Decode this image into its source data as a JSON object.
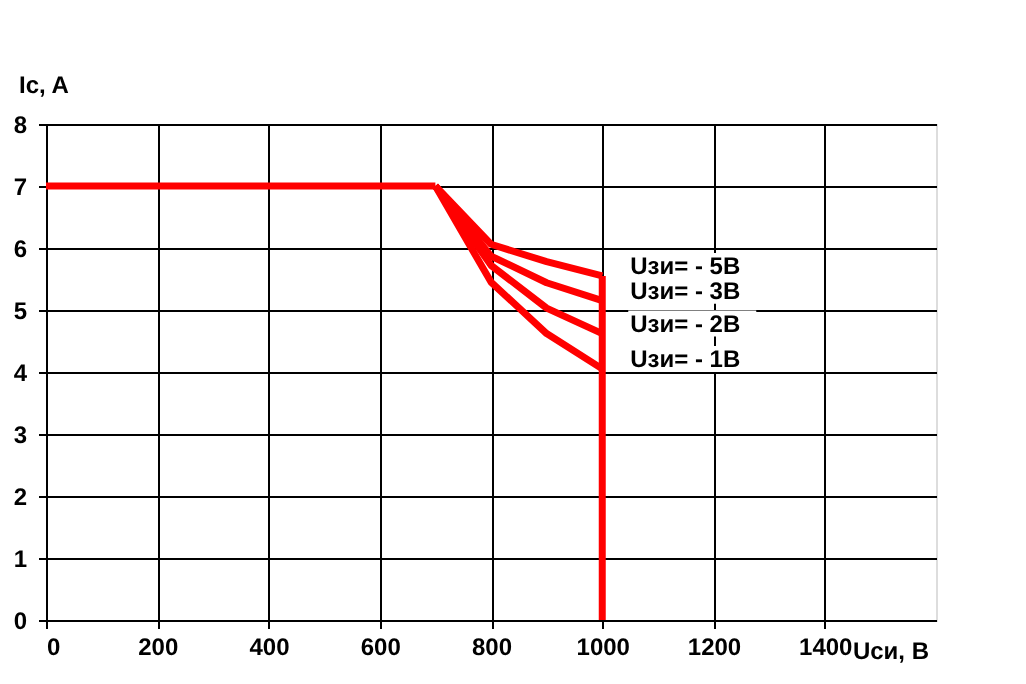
{
  "chart_data": {
    "type": "line",
    "xlabel": "Uси, В",
    "ylabel": "Ic, A",
    "xlim": [
      0,
      1600
    ],
    "xticks": [
      0,
      200,
      400,
      600,
      800,
      1000,
      1200,
      1400
    ],
    "ylim": [
      0,
      8
    ],
    "yticks": [
      0,
      1,
      2,
      3,
      4,
      5,
      6,
      7,
      8
    ],
    "grid": true,
    "legend": false,
    "marker": "none",
    "line_style": "solid",
    "series": [
      {
        "color": "#ff0000",
        "x": [
          0,
          700
        ],
        "values": [
          7,
          7
        ]
      },
      {
        "name": "Uзи= - 5В",
        "color": "#ff0000",
        "x": [
          700,
          800,
          900,
          1000
        ],
        "values": [
          7,
          6.06,
          5.78,
          5.55
        ]
      },
      {
        "name": "Uзи= - 3В",
        "color": "#ff0000",
        "x": [
          700,
          800,
          900,
          1000
        ],
        "values": [
          7,
          5.87,
          5.44,
          5.15
        ]
      },
      {
        "name": "Uзи= - 2В",
        "color": "#ff0000",
        "x": [
          700,
          800,
          900,
          1000
        ],
        "values": [
          7,
          5.72,
          5.03,
          4.62
        ]
      },
      {
        "name": "Uзи= - 1В",
        "color": "#ff0000",
        "x": [
          700,
          800,
          900,
          1000
        ],
        "values": [
          7,
          5.45,
          4.62,
          4.05
        ]
      },
      {
        "color": "#ff0000",
        "x": [
          1000,
          1000
        ],
        "values": [
          5.55,
          0
        ]
      }
    ]
  }
}
